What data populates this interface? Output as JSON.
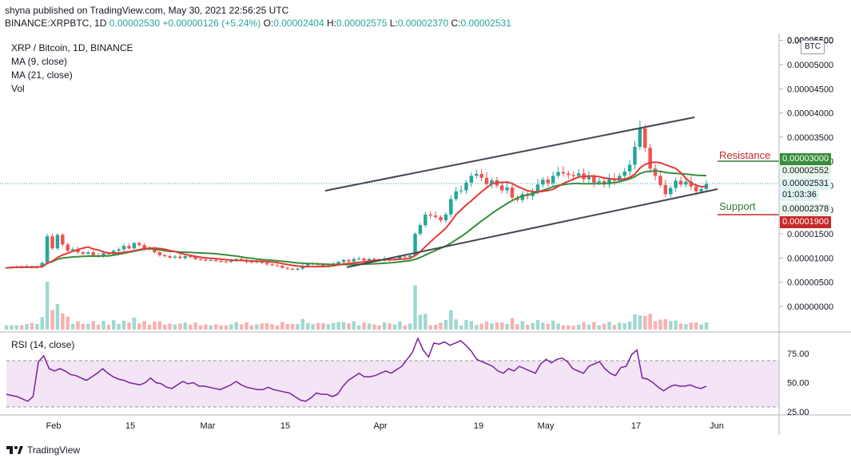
{
  "header": {
    "publisher": "shyna published on TradingView.com, May 30, 2021 22:56:25 UTC",
    "symbol": "BINANCE:XRPBTC, 1D",
    "last": "0.00002530",
    "change": "+0.00000126 (+5.24%)",
    "o_label": "O:",
    "o_value": "0.00002404",
    "h_label": "H:",
    "h_value": "0.00002575",
    "l_label": "L:",
    "l_value": "0.00002370",
    "c_label": "C:",
    "c_value": "0.00002531"
  },
  "legend": {
    "title": "XRP / Bitcoin, 1D, BINANCE",
    "ma9": "MA (9, close)",
    "ma21": "MA (21, close)",
    "vol": "Vol",
    "rsi": "RSI (14, close)"
  },
  "currency_badge": "BTC",
  "annotations": {
    "resistance": "Resistance",
    "support": "Support"
  },
  "price_tags": {
    "resistance": "0.00003000",
    "ma": "0.00002552",
    "last": "0.00002531",
    "countdown": "01:03:36",
    "ma2": "0.00002378",
    "support": "0.00001900"
  },
  "footer": {
    "brand": "TradingView"
  },
  "colors": {
    "up": "#26a69a",
    "down": "#ef5350",
    "ma9": "#e53935",
    "ma21": "#388e3c",
    "rsi": "#7b1fa2",
    "rsi_band": "#f3e5f5",
    "resistance": "#2e7d32",
    "support": "#c62828"
  },
  "chart_data": [
    {
      "type": "candlestick",
      "title": "XRP / Bitcoin, 1D, BINANCE",
      "x_ticks": [
        "Feb",
        "15",
        "Mar",
        "15",
        "Apr",
        "19",
        "May",
        "17",
        "Jun"
      ],
      "y_ticks": [
        "0.00000000",
        "0.00000500",
        "0.00001000",
        "0.00001500",
        "0.00002000",
        "0.00002500",
        "0.00003000",
        "0.00003500",
        "0.00004000",
        "0.00004500",
        "0.00005000",
        "0.00005500"
      ],
      "ylim": [
        0.0,
        5.55e-05
      ],
      "series_close": [
        8e-06,
        8.1e-06,
        8.2e-06,
        8.1e-06,
        8.3e-06,
        8e-06,
        8.2e-06,
        9e-06,
        1.45e-05,
        1.2e-05,
        1.48e-05,
        1.28e-05,
        1.15e-05,
        1.18e-05,
        1.12e-05,
        1.09e-05,
        1.12e-05,
        1.06e-05,
        1.04e-05,
        1.1e-05,
        1.08e-05,
        1.15e-05,
        1.18e-05,
        1.25e-05,
        1.2e-05,
        1.31e-05,
        1.27e-05,
        1.2e-05,
        1.18e-05,
        1.12e-05,
        1.06e-05,
        1.04e-05,
        1.01e-05,
        1.03e-05,
        1e-05,
        1.04e-05,
        1.02e-05,
        9.8e-06,
        9.7e-06,
        9.5e-06,
        9.6e-06,
        9.4e-06,
        9.3e-06,
        9.2e-06,
        9.4e-06,
        9.8e-06,
        9.6e-06,
        9.2e-06,
        9.1e-06,
        9.3e-06,
        9e-06,
        8.7e-06,
        8.5e-06,
        8.4e-06,
        8e-06,
        7.8e-06,
        7.6e-06,
        7.8e-06,
        8.4e-06,
        8.7e-06,
        8.9e-06,
        8.6e-06,
        8.3e-06,
        8.5e-06,
        8.8e-06,
        9.2e-06,
        9.6e-06,
        9.3e-06,
        9.8e-06,
        9.9e-06,
        9.5e-06,
        9.8e-06,
        9.6e-06,
        9.5e-06,
        9.9e-06,
        9.6e-06,
        9.8e-06,
        1.03e-05,
        1.02e-05,
        1.05e-05,
        1.5e-05,
        1.68e-05,
        1.9e-05,
        1.88e-05,
        1.85e-05,
        1.78e-05,
        1.9e-05,
        2.22e-05,
        2.38e-05,
        2.4e-05,
        2.56e-05,
        2.7e-05,
        2.74e-05,
        2.66e-05,
        2.53e-05,
        2.61e-05,
        2.5e-05,
        2.4e-05,
        2.46e-05,
        2.25e-05,
        2.2e-05,
        2.32e-05,
        2.28e-05,
        2.36e-05,
        2.52e-05,
        2.62e-05,
        2.55e-05,
        2.7e-05,
        2.78e-05,
        2.75e-05,
        2.72e-05,
        2.7e-05,
        2.75e-05,
        2.63e-05,
        2.68e-05,
        2.56e-05,
        2.59e-05,
        2.52e-05,
        2.64e-05,
        2.6e-05,
        2.7e-05,
        2.79e-05,
        2.93e-05,
        3.3e-05,
        3.68e-05,
        3.28e-05,
        2.85e-05,
        2.7e-05,
        2.51e-05,
        2.32e-05,
        2.45e-05,
        2.6e-05,
        2.52e-05,
        2.58e-05,
        2.48e-05,
        2.38e-05,
        2.43e-05,
        2.53e-05
      ]
    },
    {
      "type": "bar",
      "title": "Vol"
    },
    {
      "type": "line",
      "title": "RSI (14, close)",
      "y_ticks": [
        "25.00",
        "50.00",
        "75.00"
      ],
      "ylim": [
        22,
        92
      ],
      "bands": [
        30,
        70
      ],
      "values": [
        40,
        39,
        38,
        36,
        34,
        38,
        68,
        73,
        62,
        60,
        62,
        60,
        57,
        56,
        54,
        52,
        55,
        58,
        62,
        58,
        55,
        53,
        52,
        50,
        49,
        48,
        50,
        54,
        50,
        49,
        46,
        45,
        48,
        51,
        49,
        50,
        47,
        47,
        46,
        45,
        44,
        46,
        48,
        51,
        48,
        46,
        45,
        44,
        44,
        46,
        44,
        43,
        42,
        41,
        38,
        35,
        34,
        37,
        41,
        40,
        40,
        38,
        40,
        47,
        52,
        55,
        58,
        55,
        55,
        56,
        58,
        60,
        58,
        61,
        64,
        70,
        76,
        88,
        78,
        72,
        84,
        83,
        85,
        82,
        84,
        86,
        82,
        77,
        70,
        68,
        66,
        64,
        60,
        58,
        62,
        60,
        64,
        62,
        60,
        58,
        66,
        70,
        67,
        70,
        71,
        68,
        62,
        60,
        58,
        64,
        66,
        68,
        62,
        58,
        56,
        63,
        64,
        74,
        78,
        54,
        53,
        50,
        46,
        43,
        46,
        48,
        47,
        47,
        48,
        46,
        45,
        47
      ]
    }
  ]
}
